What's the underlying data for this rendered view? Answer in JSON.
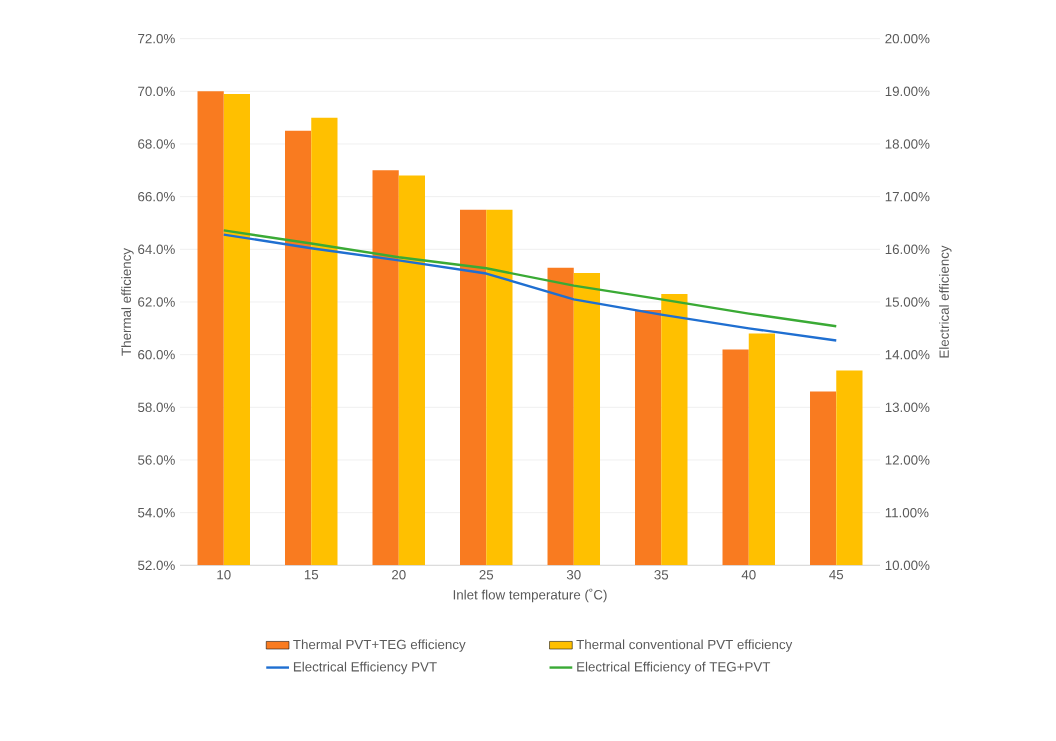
{
  "chart_data": {
    "type": "bar",
    "xlabel": "Inlet flow temperature (˚C)",
    "ylabel": "Thermal efficiency",
    "y2label": "Electrical efficiency",
    "categories": [
      "10",
      "15",
      "20",
      "25",
      "30",
      "35",
      "40",
      "45"
    ],
    "series": [
      {
        "name": "Thermal  PVT+TEG efficiency",
        "color": "#f97b20",
        "values": [
          70.0,
          68.5,
          67.0,
          65.5,
          63.3,
          61.7,
          60.2,
          58.6
        ]
      },
      {
        "name": "Thermal conventional PVT efficiency",
        "color": "#ffc000",
        "values": [
          69.9,
          69.0,
          66.8,
          65.5,
          63.1,
          62.3,
          60.8,
          59.4
        ]
      },
      {
        "name": "Electrical Efficiency PVT",
        "type": "line",
        "axis": "y2",
        "color": "#1f6fd1",
        "values": [
          16.28,
          16.02,
          15.79,
          15.54,
          15.05,
          14.76,
          14.5,
          14.27
        ]
      },
      {
        "name": "Electrical Efficiency of TEG+PVT",
        "type": "line",
        "axis": "y2",
        "color": "#3aaa35",
        "values": [
          16.36,
          16.11,
          15.85,
          15.64,
          15.31,
          15.05,
          14.78,
          14.54
        ]
      }
    ],
    "ylim": [
      52,
      72
    ],
    "yticks": [
      {
        "value": 52,
        "label": "52.0%"
      },
      {
        "value": 54,
        "label": "54.0%"
      },
      {
        "value": 56,
        "label": "56.0%"
      },
      {
        "value": 58,
        "label": "58.0%"
      },
      {
        "value": 60,
        "label": "60.0%"
      },
      {
        "value": 62,
        "label": "62.0%"
      },
      {
        "value": 64,
        "label": "64.0%"
      },
      {
        "value": 66,
        "label": "66.0%"
      },
      {
        "value": 68,
        "label": "68.0%"
      },
      {
        "value": 70,
        "label": "70.0%"
      },
      {
        "value": 72,
        "label": "72.0%"
      }
    ],
    "y2lim": [
      10,
      20
    ],
    "y2ticks": [
      {
        "value": 10,
        "label": "10.00%"
      },
      {
        "value": 11,
        "label": "11.00%"
      },
      {
        "value": 12,
        "label": "12.00%"
      },
      {
        "value": 13,
        "label": "13.00%"
      },
      {
        "value": 14,
        "label": "14.00%"
      },
      {
        "value": 15,
        "label": "15.00%"
      },
      {
        "value": 16,
        "label": "16.00%"
      },
      {
        "value": 17,
        "label": "17.00%"
      },
      {
        "value": 18,
        "label": "18.00%"
      },
      {
        "value": 19,
        "label": "19.00%"
      },
      {
        "value": 20,
        "label": "20.00%"
      }
    ],
    "grid": "y",
    "legend": "bottom"
  }
}
